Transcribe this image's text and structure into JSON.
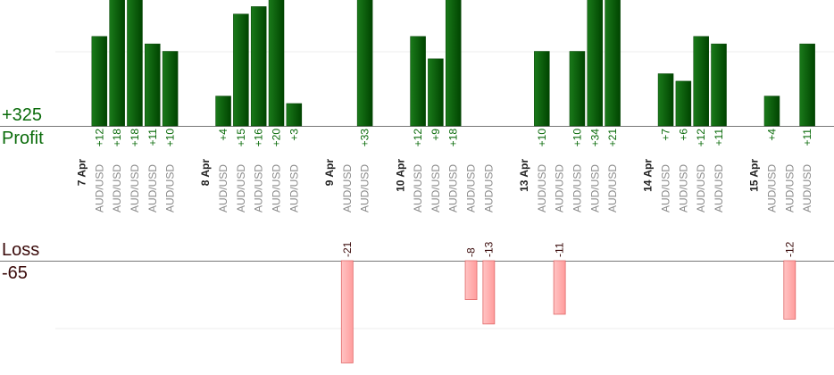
{
  "summary": {
    "profit_total": "+325",
    "profit_label": "Profit",
    "loss_label": "Loss",
    "loss_total": "-65"
  },
  "colors": {
    "profit_bar": "#0b640b",
    "profit_bar_dark": "#003f00",
    "loss_bar": "#ffb0b0",
    "loss_bar_edge": "#e06868",
    "profit_text": "#0a6b0a",
    "loss_text": "#3a0a0a",
    "pair_text": "#8a8a8a",
    "date_text": "#222222"
  },
  "chart_data": {
    "type": "bar",
    "title": "",
    "xlabel": "",
    "ylabel": "",
    "profit_ylim": [
      0,
      18
    ],
    "loss_ylim": [
      -25,
      0
    ],
    "grid": true,
    "columns": [
      {
        "date": "7 Apr"
      },
      {
        "pair": "AUD/USD",
        "value": 12
      },
      {
        "pair": "AUD/USD",
        "value": 18
      },
      {
        "pair": "AUD/USD",
        "value": 18
      },
      {
        "pair": "AUD/USD",
        "value": 11
      },
      {
        "pair": "AUD/USD",
        "value": 10
      },
      {
        "gap": true
      },
      {
        "date": "8 Apr"
      },
      {
        "pair": "AUD/USD",
        "value": 4
      },
      {
        "pair": "AUD/USD",
        "value": 15
      },
      {
        "pair": "AUD/USD",
        "value": 16
      },
      {
        "pair": "AUD/USD",
        "value": 20
      },
      {
        "pair": "AUD/USD",
        "value": 3
      },
      {
        "gap": true
      },
      {
        "date": "9 Apr"
      },
      {
        "pair": "AUD/USD",
        "value": -21
      },
      {
        "pair": "AUD/USD",
        "value": 33
      },
      {
        "gap": true
      },
      {
        "date": "10 Apr"
      },
      {
        "pair": "AUD/USD",
        "value": 12
      },
      {
        "pair": "AUD/USD",
        "value": 9
      },
      {
        "pair": "AUD/USD",
        "value": 18
      },
      {
        "pair": "AUD/USD",
        "value": -8
      },
      {
        "pair": "AUD/USD",
        "value": -13
      },
      {
        "gap": true
      },
      {
        "date": "13 Apr"
      },
      {
        "pair": "AUD/USD",
        "value": 10
      },
      {
        "pair": "AUD/USD",
        "value": -11
      },
      {
        "pair": "AUD/USD",
        "value": 10
      },
      {
        "pair": "AUD/USD",
        "value": 34
      },
      {
        "pair": "AUD/USD",
        "value": 21
      },
      {
        "gap": true
      },
      {
        "date": "14 Apr"
      },
      {
        "pair": "AUD/USD",
        "value": 7
      },
      {
        "pair": "AUD/USD",
        "value": 6
      },
      {
        "pair": "AUD/USD",
        "value": 12
      },
      {
        "pair": "AUD/USD",
        "value": 11
      },
      {
        "gap": true
      },
      {
        "date": "15 Apr"
      },
      {
        "pair": "AUD/USD",
        "value": 4
      },
      {
        "pair": "AUD/USD",
        "value": -12
      },
      {
        "pair": "AUD/USD",
        "value": 11
      }
    ]
  }
}
